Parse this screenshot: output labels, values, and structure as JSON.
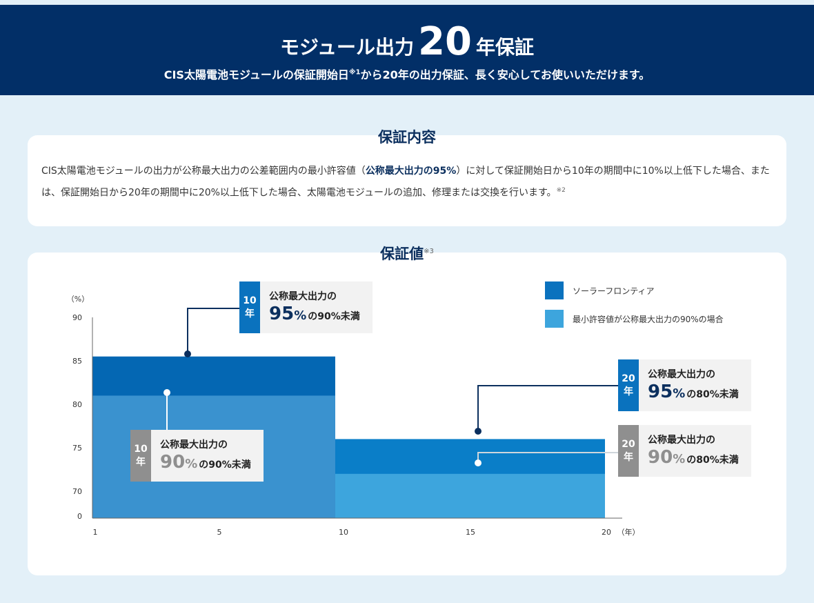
{
  "hero": {
    "title_pre": "モジュール出力",
    "title_num": "20",
    "title_post": "年保証",
    "subtitle_a": "CIS太陽電池モジュールの保証開始日",
    "subtitle_note": "※1",
    "subtitle_b": "から20年の出力保証、長く安心してお使いいただけます。"
  },
  "content": {
    "title": "保証内容",
    "text_a": "CIS太陽電池モジュールの出力が公称最大出力の公差範囲内の最小許容値（",
    "text_highlight": "公称最大出力の95%",
    "text_b": "）に対して保証開始日から10年の期間中に10%以上低下した場合、または、保証開始日から20年の期間中に20%以上低下した場合、太陽電池モジュールの追加、修理または交換を行います。",
    "text_note": "※2"
  },
  "values_section": {
    "title": "保証値",
    "note": "※3"
  },
  "legend": [
    {
      "label": "ソーラーフロンティア",
      "color": "#0a72be"
    },
    {
      "label": "最小許容値が公称最大出力の90%の場合",
      "color": "#3da5dd"
    }
  ],
  "callouts": [
    {
      "tag": "10年",
      "line1": "公称最大出力の",
      "pct": "95",
      "pctsign": "%",
      "suffix": "の90%未満",
      "style": "blue"
    },
    {
      "tag": "10年",
      "line1": "公称最大出力の",
      "pct": "90",
      "pctsign": "%",
      "suffix": "の90%未満",
      "style": "gray"
    },
    {
      "tag": "20年",
      "line1": "公称最大出力の",
      "pct": "95",
      "pctsign": "%",
      "suffix": "の80%未満",
      "style": "blue"
    },
    {
      "tag": "20年",
      "line1": "公称最大出力の",
      "pct": "90",
      "pctsign": "%",
      "suffix": "の80%未満",
      "style": "gray"
    }
  ],
  "chart_data": {
    "type": "area",
    "ylabel": "（%）",
    "xlabel": "（年）",
    "y_ticks": [
      "0",
      "70",
      "75",
      "80",
      "85",
      "90"
    ],
    "x_ticks": [
      "1",
      "5",
      "10",
      "15",
      "20"
    ],
    "axis_break": true,
    "series": [
      {
        "name": "ソーラーフロンティア",
        "color": "#0a72be",
        "steps": [
          {
            "x_start": 1,
            "x_end": 10,
            "y": 85.5
          },
          {
            "x_start": 10,
            "x_end": 20,
            "y": 76
          }
        ]
      },
      {
        "name": "最小許容値が公称最大出力の90%の場合",
        "color": "#3da5dd",
        "steps": [
          {
            "x_start": 1,
            "x_end": 10,
            "y": 81
          },
          {
            "x_start": 10,
            "x_end": 20,
            "y": 72
          }
        ]
      }
    ]
  }
}
